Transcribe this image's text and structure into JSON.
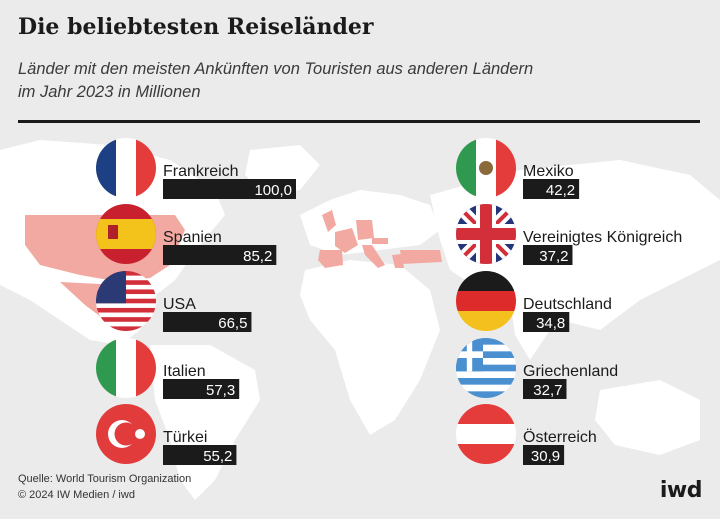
{
  "header": {
    "title": "Die beliebtesten Reiseländer",
    "subtitle_line1": "Länder mit den meisten Ankünften von Touristen aus anderen Ländern",
    "subtitle_line2": "im Jahr 2023 in Millionen"
  },
  "footer": {
    "source": "Quelle: World Tourism Organization",
    "copyright": "© 2024 IW Medien / iwd",
    "brand": "iwd"
  },
  "colors": {
    "bar": "#1b1b1b",
    "value_text": "#ffffff",
    "background": "#ebebeb",
    "land": "#ffffff",
    "highlight": "#f2a9a1"
  },
  "chart_data": {
    "type": "bar",
    "title": "Die beliebtesten Reiseländer",
    "subtitle": "Länder mit den meisten Ankünften von Touristen aus anderen Ländern im Jahr 2023 in Millionen",
    "unit": "Millionen",
    "xlabel": "",
    "ylabel": "",
    "xlim": [
      0,
      100
    ],
    "categories": [
      "Frankreich",
      "Spanien",
      "USA",
      "Italien",
      "Türkei",
      "Mexiko",
      "Vereinigtes Königreich",
      "Deutschland",
      "Griechenland",
      "Österreich"
    ],
    "values": [
      100.0,
      85.2,
      66.5,
      57.3,
      55.2,
      42.2,
      37.2,
      34.8,
      32.7,
      30.9
    ],
    "value_labels": [
      "100,0",
      "85,2",
      "66,5",
      "57,3",
      "55,2",
      "42,2",
      "37,2",
      "34,8",
      "32,7",
      "30,9"
    ],
    "flags": [
      "france-flag",
      "spain-flag",
      "usa-flag",
      "italy-flag",
      "turkey-flag",
      "mexico-flag",
      "uk-flag",
      "germany-flag",
      "greece-flag",
      "austria-flag"
    ]
  }
}
